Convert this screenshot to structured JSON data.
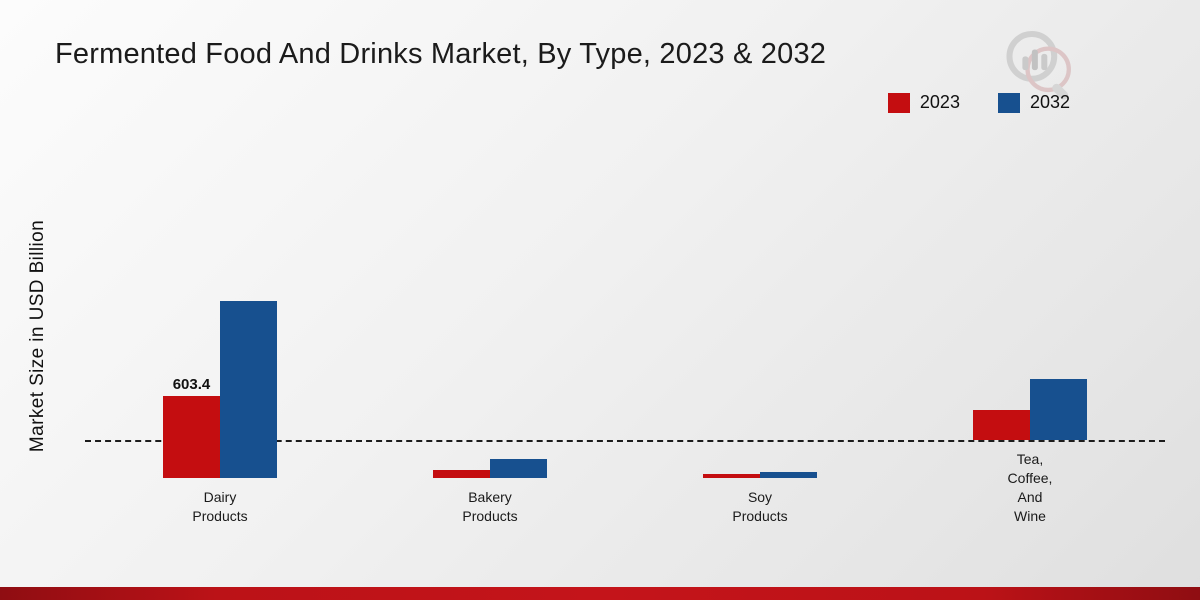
{
  "page": {
    "title": "Fermented Food And Drinks Market, By Type, 2023 & 2032",
    "ylabel": "Market Size in USD Billion"
  },
  "legend": [
    {
      "label": "2023",
      "color": "#c40d10"
    },
    {
      "label": "2032",
      "color": "#17508f"
    }
  ],
  "chart_data": {
    "type": "bar",
    "title": "Fermented Food And Drinks Market, By Type, 2023 & 2032",
    "ylabel": "Market Size in USD Billion",
    "xlabel": "",
    "categories": [
      "Dairy\nProducts",
      "Bakery\nProducts",
      "Soy\nProducts",
      "Tea,\nCoffee,\nAnd\nWine"
    ],
    "series": [
      {
        "name": "2023",
        "color": "#c40d10",
        "values": [
          603.4,
          60,
          25,
          220
        ]
      },
      {
        "name": "2032",
        "color": "#17508f",
        "values": [
          1300,
          140,
          45,
          450
        ]
      }
    ],
    "value_labels": [
      {
        "series": "2023",
        "category_index": 0,
        "text": "603.4"
      }
    ],
    "ylim": [
      0,
      1400
    ],
    "baseline_style": "dashed",
    "grid": false,
    "legend_position": "top-right"
  }
}
